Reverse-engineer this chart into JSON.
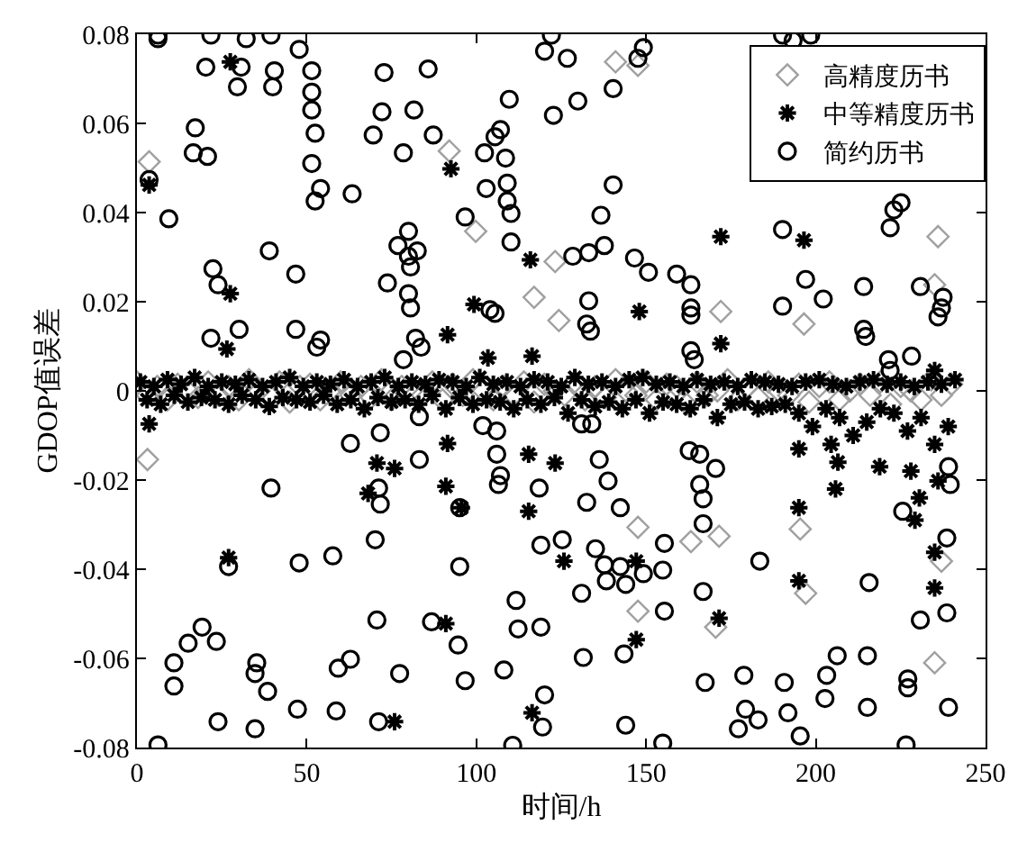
{
  "chart_data": {
    "type": "scatter",
    "xlabel": "时间/h",
    "ylabel": "GDOP值误差",
    "xlim": [
      0,
      250
    ],
    "xticks": [
      0,
      50,
      100,
      150,
      200,
      250
    ],
    "ylim": [
      -0.08,
      0.08
    ],
    "yticks": [
      -0.08,
      -0.06,
      -0.04,
      -0.02,
      0,
      0.02,
      0.04,
      0.06,
      0.08
    ],
    "legend": "top right",
    "series": [
      {
        "name": "高精度历书",
        "color": "#a0a0a0",
        "marker": "diamond",
        "x": [
          3.6,
          92,
          99.8,
          123.2,
          124.3,
          117,
          141,
          147.6,
          172,
          196.5,
          236,
          235,
          3.1,
          197,
          147.6,
          170.5,
          235,
          163.2,
          171.5,
          147.6,
          237,
          195.4,
          0,
          3,
          6,
          9,
          12,
          15,
          18,
          21,
          24,
          27,
          30,
          33,
          36,
          39,
          42,
          45,
          48,
          51,
          54,
          57,
          60,
          63,
          66,
          69,
          72,
          75,
          78,
          81,
          84,
          87,
          90,
          93,
          96,
          99,
          102,
          105,
          108,
          111,
          114,
          117,
          120,
          123,
          126,
          129,
          132,
          135,
          138,
          141,
          144,
          147,
          150,
          153,
          156,
          159,
          162,
          165,
          168,
          171,
          174,
          177,
          180,
          183,
          186,
          189,
          192,
          195,
          198,
          201,
          204,
          207,
          210,
          213,
          216,
          219,
          222,
          225,
          228,
          231,
          234,
          237,
          240
        ],
        "values": [
          0.0514,
          0.0538,
          0.0358,
          0.029,
          0.0158,
          0.021,
          0.0738,
          0.073,
          0.0178,
          0.015,
          0.0346,
          0.0238,
          -0.0154,
          -0.0454,
          -0.0494,
          -0.053,
          -0.061,
          -0.0338,
          -0.0326,
          -0.0306,
          -0.0382,
          -0.031,
          0.002,
          -0.001,
          0.001,
          -0.002,
          0.0015,
          0.0,
          -0.0015,
          0.002,
          -0.001,
          0.001,
          -0.002,
          0.0025,
          0.0,
          -0.001,
          0.002,
          -0.0025,
          0.001,
          0.0015,
          -0.002,
          0.0,
          0.002,
          -0.001,
          0.001,
          -0.0015,
          0.0025,
          -0.002,
          0.001,
          0.0,
          -0.001,
          0.002,
          -0.002,
          0.0015,
          -0.001,
          0.0025,
          0.0,
          -0.002,
          0.001,
          -0.001,
          0.002,
          -0.0025,
          0.0015,
          0.0,
          -0.001,
          0.002,
          -0.002,
          0.001,
          -0.0015,
          0.0025,
          0.0,
          -0.001,
          0.002,
          -0.002,
          0.0015,
          0.001,
          -0.003,
          0.002,
          -0.001,
          0.0,
          0.0025,
          -0.002,
          0.001,
          -0.0015,
          0.002,
          0.0,
          -0.001,
          0.0015,
          -0.0025,
          0.001,
          0.002,
          -0.002,
          0.0,
          0.0015,
          -0.001,
          0.002,
          -0.003,
          0.001,
          0.0,
          -0.002,
          0.0025,
          -0.001,
          0.0015
        ]
      },
      {
        "name": "中等精度历书",
        "color": "#000000",
        "marker": "cross",
        "x": [
          27.5,
          3.6,
          27.5,
          92.5,
          115.9,
          99.3,
          91.5,
          26.5,
          103.4,
          116.4,
          172,
          196.5,
          172,
          148,
          235,
          3.6,
          27,
          70.7,
          68.1,
          75.9,
          91,
          95.6,
          91.5,
          115.4,
          115.4,
          125.8,
          116.4,
          75.9,
          91,
          123.2,
          147.1,
          147.1,
          171.5,
          195,
          195,
          235,
          235,
          236,
          205.8,
          204.5,
          206.5,
          229.2,
          228,
          230.5,
          218.8,
          195,
          1,
          3,
          5,
          7,
          9,
          11,
          13,
          15,
          17,
          19,
          21,
          23,
          25,
          27,
          29,
          31,
          33,
          35,
          37,
          39,
          41,
          43,
          45,
          47,
          49,
          51,
          53,
          55,
          57,
          59,
          61,
          63,
          65,
          67,
          69,
          71,
          73,
          75,
          77,
          79,
          81,
          83,
          85,
          87,
          89,
          91,
          93,
          95,
          97,
          99,
          101,
          103,
          105,
          107,
          109,
          111,
          113,
          115,
          117,
          119,
          121,
          123,
          125,
          127,
          129,
          131,
          133,
          135,
          137,
          139,
          141,
          143,
          145,
          147,
          149,
          151,
          153,
          155,
          157,
          159,
          161,
          163,
          165,
          167,
          169,
          171,
          173,
          175,
          177,
          179,
          181,
          183,
          185,
          187,
          189,
          191,
          193,
          195,
          197,
          199,
          201,
          203,
          205,
          207,
          209,
          211,
          213,
          215,
          217,
          219,
          221,
          223,
          225,
          227,
          229,
          231,
          233,
          235,
          237,
          239,
          241
        ],
        "values": [
          0.0738,
          0.0462,
          0.0218,
          0.0498,
          0.0294,
          0.0194,
          0.0126,
          0.0094,
          0.0074,
          0.0078,
          0.0346,
          0.0338,
          0.0106,
          0.0178,
          0.0046,
          -0.0074,
          -0.0374,
          -0.0162,
          -0.023,
          -0.0174,
          -0.0214,
          -0.0262,
          -0.0118,
          -0.0142,
          -0.027,
          -0.0382,
          -0.0722,
          -0.0742,
          -0.0522,
          -0.0162,
          -0.0382,
          -0.0558,
          -0.051,
          -0.0426,
          -0.0262,
          -0.0442,
          -0.0362,
          -0.0202,
          -0.022,
          -0.012,
          -0.016,
          -0.029,
          -0.018,
          -0.024,
          -0.017,
          -0.013,
          0.002,
          -0.002,
          0.001,
          -0.003,
          0.0025,
          -0.001,
          0.0015,
          -0.0025,
          0.003,
          -0.0015,
          0.001,
          -0.002,
          0.002,
          -0.003,
          0.0015,
          -0.001,
          0.0025,
          -0.002,
          0.001,
          -0.0035,
          0.002,
          -0.0015,
          0.003,
          -0.002,
          0.001,
          -0.0025,
          0.002,
          -0.001,
          0.0015,
          -0.003,
          0.0025,
          -0.002,
          0.001,
          -0.004,
          0.002,
          -0.0015,
          0.003,
          -0.0025,
          0.001,
          -0.002,
          0.002,
          -0.003,
          0.0015,
          -0.001,
          0.0025,
          -0.004,
          0.002,
          -0.0015,
          0.001,
          -0.003,
          0.003,
          -0.002,
          0.0015,
          -0.0025,
          0.002,
          -0.004,
          0.001,
          -0.002,
          0.0025,
          -0.003,
          0.002,
          -0.0015,
          0.001,
          -0.005,
          0.003,
          -0.002,
          0.0015,
          -0.0035,
          0.002,
          -0.0025,
          0.001,
          -0.004,
          0.0025,
          -0.002,
          0.003,
          -0.005,
          0.0015,
          -0.0025,
          0.002,
          -0.003,
          0.001,
          -0.004,
          0.0025,
          -0.002,
          0.0015,
          -0.006,
          0.002,
          -0.003,
          0.001,
          -0.0025,
          0.0025,
          -0.004,
          0.002,
          -0.0035,
          0.0015,
          -0.003,
          0.001,
          -0.005,
          0.002,
          -0.008,
          0.0025,
          -0.004,
          0.0015,
          -0.006,
          0.001,
          -0.01,
          0.002,
          -0.007,
          0.0025,
          -0.004,
          0.0015,
          -0.005,
          0.002,
          -0.009,
          0.001,
          -0.006,
          0.002,
          -0.012,
          0.0015,
          -0.008,
          0.0025
        ]
      },
      {
        "name": "简约历书",
        "color": "#000000",
        "marker": "circle",
        "x": [
          6.2,
          6.2,
          21.8,
          30.7,
          20.3,
          29.6,
          39.5,
          32.2,
          47.8,
          40.5,
          40.0,
          51.5,
          51.5,
          51.5,
          52.5,
          51.5,
          54.1,
          52.5,
          63.4,
          17.2,
          16.6,
          20.8,
          3.6,
          9.4,
          39.0,
          46.8,
          22.4,
          23.9,
          30.1,
          21.8,
          46.8,
          53.0,
          54.1,
          72.8,
          72.2,
          85.8,
          87.3,
          78.5,
          81.6,
          69.6,
          76.9,
          80.0,
          80.0,
          80.6,
          82.6,
          73.8,
          80.0,
          80.6,
          82.1,
          78.5,
          83.7,
          96.7,
          102.9,
          105.5,
          102.4,
          109.7,
          107.1,
          108.6,
          109.1,
          109.1,
          110.2,
          110.2,
          104.0,
          105.5,
          122.1,
          120.1,
          126.8,
          129.9,
          122.7,
          140.3,
          147.6,
          149.2,
          136.7,
          140.3,
          137.7,
          133.1,
          128.4,
          133.1,
          133.6,
          132.5,
          146.6,
          150.7,
          159.0,
          163.2,
          163.2,
          163.2,
          163.2,
          164.2,
          190.2,
          193.3,
          198.5,
          190.2,
          197.0,
          202.2,
          190.2,
          214.1,
          214.7,
          214.1,
          223.0,
          221.9,
          225.1,
          230.8,
          237.5,
          236.0,
          237.0,
          228.2,
          221.9,
          221.4,
          71.7,
          62.9,
          83.2,
          71.2,
          71.7,
          70.2,
          95.1,
          95.1,
          47.8,
          57.7,
          27.0,
          70.7,
          86.8,
          94.6,
          96.7,
          111.7,
          112.3,
          119.0,
          108.1,
          119.0,
          118.5,
          125.3,
          106.0,
          106.5,
          107.1,
          101.9,
          106.0,
          83.2,
          39.5,
          19.2,
          23.4,
          15.1,
          10.9,
          10.9,
          35.3,
          34.8,
          38.5,
          47.3,
          59.3,
          62.9,
          77.4,
          58.7,
          71.2,
          23.9,
          34.8,
          6.2,
          110.7,
          120.1,
          119.5,
          131,
          134,
          132.5,
          136.2,
          138.8,
          135.1,
          137.7,
          138.3,
          142.4,
          142.4,
          144.0,
          149.2,
          154.9,
          155.4,
          155.4,
          131,
          131.5,
          143.5,
          144,
          154.9,
          162.7,
          165.8,
          165.8,
          166.8,
          166.8,
          166.8,
          167.4,
          170.5,
          183.5,
          178.8,
          179.3,
          177.2,
          183,
          190.7,
          191.8,
          195.4,
          203.2,
          202.7,
          206.3,
          215.2,
          215.2,
          215.7,
          227.1,
          227.1,
          226.6,
          230.8,
          238.6,
          239.1,
          225.6,
          238.6,
          239.1,
          239.6
        ],
        "values": [
          0.0798,
          0.079,
          0.0798,
          0.0726,
          0.0726,
          0.0682,
          0.0798,
          0.079,
          0.0766,
          0.0718,
          0.0682,
          0.0718,
          0.067,
          0.063,
          0.0578,
          0.051,
          0.0454,
          0.0426,
          0.0442,
          0.059,
          0.0534,
          0.0526,
          0.0474,
          0.0386,
          0.0314,
          0.0262,
          0.0274,
          0.0238,
          0.0138,
          0.0118,
          0.0138,
          0.0098,
          0.0114,
          0.0714,
          0.0626,
          0.0722,
          0.0574,
          0.0534,
          0.063,
          0.0574,
          0.0326,
          0.0358,
          0.0302,
          0.0278,
          0.0314,
          0.0242,
          0.0218,
          0.0186,
          0.0118,
          0.007,
          0.0098,
          0.039,
          0.0454,
          0.057,
          0.0534,
          0.0654,
          0.0586,
          0.0522,
          0.0466,
          0.0426,
          0.0398,
          0.0334,
          0.0182,
          0.0174,
          0.0798,
          0.0762,
          0.0746,
          0.065,
          0.0618,
          0.0678,
          0.0746,
          0.077,
          0.0394,
          0.0462,
          0.0326,
          0.031,
          0.0302,
          0.0202,
          0.0134,
          0.015,
          0.0298,
          0.0266,
          0.0262,
          0.0238,
          0.017,
          0.0186,
          0.009,
          0.007,
          0.0798,
          0.0786,
          0.0798,
          0.0362,
          0.025,
          0.0206,
          0.019,
          0.0138,
          0.0122,
          0.0234,
          0.0406,
          0.0366,
          0.0422,
          0.0234,
          0.021,
          0.0166,
          0.0186,
          0.0078,
          0.0046,
          0.007,
          -0.0094,
          -0.0118,
          -0.0154,
          -0.0218,
          -0.0254,
          -0.0334,
          -0.0262,
          -0.0394,
          -0.0386,
          -0.037,
          -0.0394,
          -0.0514,
          -0.0518,
          -0.057,
          -0.065,
          -0.047,
          -0.0534,
          -0.053,
          -0.0626,
          -0.0346,
          -0.0218,
          -0.0334,
          -0.0142,
          -0.021,
          -0.019,
          -0.0078,
          -0.009,
          -0.0058,
          -0.0218,
          -0.053,
          -0.0562,
          -0.0566,
          -0.061,
          -0.0662,
          -0.061,
          -0.0634,
          -0.0674,
          -0.0714,
          -0.0622,
          -0.0602,
          -0.0634,
          -0.0718,
          -0.0742,
          -0.0742,
          -0.0758,
          -0.0794,
          -0.0795,
          -0.0682,
          -0.0754,
          -0.0074,
          -0.0074,
          -0.025,
          -0.0154,
          -0.0202,
          -0.0354,
          -0.039,
          -0.0426,
          -0.0262,
          -0.0394,
          -0.0434,
          -0.041,
          -0.0402,
          -0.0342,
          -0.0494,
          -0.0454,
          -0.0598,
          -0.059,
          -0.075,
          -0.079,
          -0.0134,
          -0.0142,
          -0.021,
          -0.0242,
          -0.0298,
          -0.045,
          -0.0654,
          -0.0174,
          -0.0382,
          -0.0638,
          -0.0714,
          -0.0758,
          -0.0738,
          -0.0654,
          -0.0722,
          -0.0774,
          -0.0638,
          -0.069,
          -0.0594,
          -0.0594,
          -0.071,
          -0.043,
          -0.0646,
          -0.0666,
          -0.0794,
          -0.0514,
          -0.0498,
          -0.071,
          -0.027,
          -0.033,
          -0.017,
          -0.021
        ]
      }
    ]
  }
}
